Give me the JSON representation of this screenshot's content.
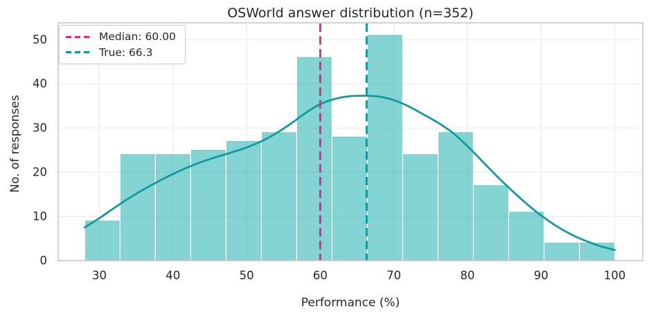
{
  "chart_data": {
    "type": "bar",
    "subtype": "histogram-with-kde",
    "title": "OSWorld answer distribution (n=352)",
    "xlabel": "Performance (%)",
    "ylabel": "No. of responses",
    "n_total": 352,
    "bin_edges": [
      28,
      32.8,
      37.6,
      42.4,
      47.2,
      52,
      56.8,
      61.6,
      66.4,
      71.2,
      76,
      80.8,
      85.6,
      90.4,
      95.2,
      100
    ],
    "counts": [
      9,
      24,
      24,
      25,
      27,
      29,
      46,
      28,
      51,
      24,
      29,
      17,
      11,
      4,
      4
    ],
    "kde_curve": [
      [
        28,
        7.5
      ],
      [
        30,
        9.6
      ],
      [
        32,
        11.9
      ],
      [
        34,
        14.1
      ],
      [
        36,
        16.1
      ],
      [
        38,
        17.9
      ],
      [
        40,
        19.6
      ],
      [
        42,
        21.1
      ],
      [
        44,
        22.4
      ],
      [
        46,
        23.5
      ],
      [
        48,
        24.5
      ],
      [
        50,
        25.6
      ],
      [
        52,
        27.0
      ],
      [
        54,
        28.8
      ],
      [
        56,
        31.0
      ],
      [
        58,
        33.4
      ],
      [
        60,
        35.4
      ],
      [
        62,
        36.6
      ],
      [
        64,
        37.2
      ],
      [
        66,
        37.3
      ],
      [
        68,
        37.1
      ],
      [
        70,
        36.3
      ],
      [
        72,
        34.9
      ],
      [
        74,
        33.1
      ],
      [
        76,
        31.2
      ],
      [
        78,
        28.9
      ],
      [
        80,
        25.9
      ],
      [
        82,
        22.5
      ],
      [
        84,
        19.1
      ],
      [
        86,
        15.9
      ],
      [
        88,
        12.9
      ],
      [
        90,
        10.2
      ],
      [
        92,
        7.9
      ],
      [
        94,
        6.0
      ],
      [
        96,
        4.5
      ],
      [
        98,
        3.3
      ],
      [
        100,
        2.4
      ]
    ],
    "vlines": [
      {
        "name": "median",
        "x": 60.0,
        "label": "Median: 60.00",
        "color": "#d92a8c"
      },
      {
        "name": "true",
        "x": 66.3,
        "label": "True: 66.3",
        "color": "#0d97a0"
      }
    ],
    "x_ticks": [
      30,
      40,
      50,
      60,
      70,
      80,
      90,
      100
    ],
    "y_ticks": [
      0,
      10,
      20,
      30,
      40,
      50
    ],
    "xlim": [
      24.4,
      103.8
    ],
    "ylim": [
      0,
      53.8
    ],
    "grid": true,
    "legend_position": "upper left",
    "colors": {
      "bar_fill": "rgba(30,176,174,0.55)",
      "bar_edge": "rgba(18,140,138,0.30)",
      "kde_line": "#13999f",
      "grid": "#ebebeb",
      "spine": "#c6c6c6",
      "text": "#262626"
    }
  }
}
